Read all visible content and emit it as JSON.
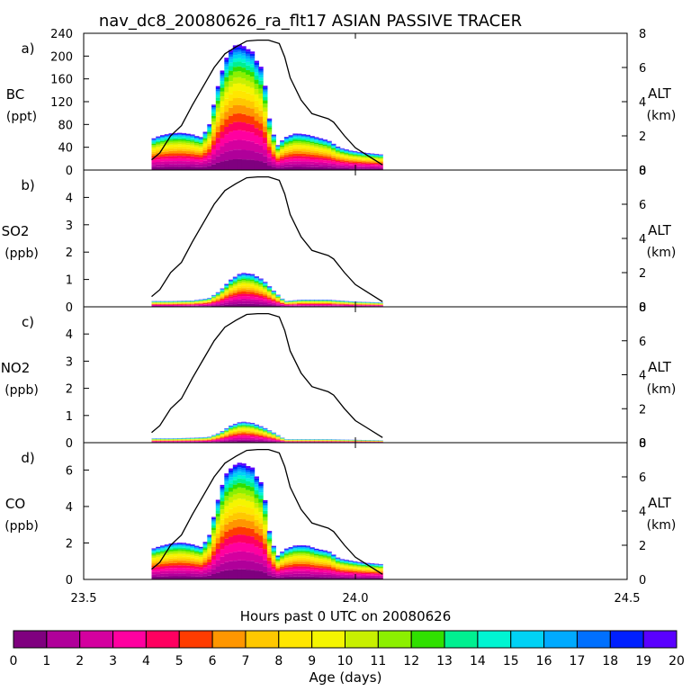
{
  "figure": {
    "title": "nav_dc8_20080626_ra_flt17 ASIAN PASSIVE TRACER",
    "xlabel": "Hours past 0 UTC on 20080626",
    "right_axis_label": "ALT",
    "right_axis_unit": "(km)"
  },
  "colorbar": {
    "label": "Age (days)",
    "ticks": [
      "0",
      "1",
      "2",
      "3",
      "4",
      "5",
      "6",
      "7",
      "8",
      "9",
      "10",
      "11",
      "12",
      "13",
      "14",
      "15",
      "16",
      "17",
      "18",
      "19",
      "20"
    ],
    "colors": [
      "#7f007f",
      "#b0009a",
      "#d4009f",
      "#ff00a0",
      "#ff0060",
      "#ff3c00",
      "#ff9600",
      "#ffc800",
      "#ffe600",
      "#f5f500",
      "#c8f000",
      "#8cf000",
      "#30e000",
      "#00f090",
      "#00f5d2",
      "#00d2f5",
      "#00aaff",
      "#0070ff",
      "#0020ff",
      "#5a00ff"
    ]
  },
  "chart_data": [
    {
      "panel_label": "a)",
      "type": "area",
      "species": "BC",
      "unit": "(ppt)",
      "xlim": [
        23.5,
        24.5
      ],
      "xticks": [
        "23.5",
        "24.0",
        "24.5"
      ],
      "ylim": [
        0,
        240
      ],
      "yticks": [
        "0",
        "40",
        "80",
        "120",
        "160",
        "200",
        "240"
      ],
      "y2lim": [
        0,
        8
      ],
      "y2ticks": [
        "0",
        "2",
        "4",
        "6",
        "8"
      ],
      "total_profile": {
        "x": [
          23.625,
          23.64,
          23.66,
          23.68,
          23.7,
          23.715,
          23.73,
          23.745,
          23.76,
          23.775,
          23.79,
          23.8,
          23.81,
          23.82,
          23.83,
          23.84,
          23.855,
          23.87,
          23.89,
          23.91,
          23.93,
          23.95,
          23.97,
          23.99,
          24.01,
          24.03,
          24.05
        ],
        "y": [
          52,
          58,
          62,
          63,
          60,
          55,
          72,
          135,
          185,
          210,
          212,
          205,
          200,
          180,
          170,
          92,
          40,
          55,
          62,
          60,
          55,
          50,
          38,
          33,
          30,
          28,
          26
        ]
      },
      "altitude_km": {
        "x": [
          23.625,
          23.64,
          23.66,
          23.68,
          23.7,
          23.72,
          23.74,
          23.76,
          23.78,
          23.8,
          23.82,
          23.84,
          23.86,
          23.87,
          23.88,
          23.9,
          23.92,
          23.94,
          23.95,
          23.96,
          23.98,
          24.0,
          24.02,
          24.05
        ],
        "y": [
          0.6,
          1.0,
          2.0,
          2.6,
          3.8,
          4.9,
          6.0,
          6.8,
          7.2,
          7.55,
          7.6,
          7.6,
          7.4,
          6.6,
          5.4,
          4.1,
          3.3,
          3.1,
          3.0,
          2.8,
          2.0,
          1.3,
          0.9,
          0.3
        ]
      }
    },
    {
      "panel_label": "b)",
      "type": "area",
      "species": "SO2",
      "unit": "(ppb)",
      "xlim": [
        23.5,
        24.5
      ],
      "xticks": [
        "23.5",
        "24.0",
        "24.5"
      ],
      "ylim": [
        0,
        5
      ],
      "yticks": [
        "0",
        "1",
        "2",
        "3",
        "4"
      ],
      "y2lim": [
        0,
        8
      ],
      "y2ticks": [
        "0",
        "2",
        "4",
        "6",
        "8"
      ],
      "total_profile": {
        "x": [
          23.625,
          23.66,
          23.7,
          23.73,
          23.75,
          23.77,
          23.79,
          23.81,
          23.83,
          23.85,
          23.87,
          23.9,
          23.95,
          24.0,
          24.05
        ],
        "y": [
          0.2,
          0.2,
          0.22,
          0.3,
          0.55,
          0.95,
          1.2,
          1.15,
          0.95,
          0.55,
          0.2,
          0.25,
          0.25,
          0.18,
          0.15
        ]
      },
      "altitude_km": {
        "x": [
          23.625,
          23.64,
          23.66,
          23.68,
          23.7,
          23.72,
          23.74,
          23.76,
          23.78,
          23.8,
          23.82,
          23.84,
          23.86,
          23.87,
          23.88,
          23.9,
          23.92,
          23.94,
          23.95,
          23.96,
          23.98,
          24.0,
          24.02,
          24.05
        ],
        "y": [
          0.6,
          1.0,
          2.0,
          2.6,
          3.8,
          4.9,
          6.0,
          6.8,
          7.2,
          7.55,
          7.6,
          7.6,
          7.4,
          6.6,
          5.4,
          4.1,
          3.3,
          3.1,
          3.0,
          2.8,
          2.0,
          1.3,
          0.9,
          0.3
        ]
      }
    },
    {
      "panel_label": "c)",
      "type": "area",
      "species": "NO2",
      "unit": "(ppb)",
      "xlim": [
        23.5,
        24.5
      ],
      "xticks": [
        "23.5",
        "24.0",
        "24.5"
      ],
      "ylim": [
        0,
        5
      ],
      "yticks": [
        "0",
        "1",
        "2",
        "3",
        "4"
      ],
      "y2lim": [
        0,
        8
      ],
      "y2ticks": [
        "0",
        "2",
        "4",
        "6",
        "8"
      ],
      "total_profile": {
        "x": [
          23.625,
          23.66,
          23.7,
          23.73,
          23.75,
          23.77,
          23.79,
          23.81,
          23.83,
          23.85,
          23.87,
          23.9,
          23.95,
          24.0,
          24.05
        ],
        "y": [
          0.15,
          0.15,
          0.17,
          0.2,
          0.35,
          0.6,
          0.75,
          0.7,
          0.55,
          0.35,
          0.12,
          0.12,
          0.12,
          0.1,
          0.08
        ]
      },
      "altitude_km": {
        "x": [
          23.625,
          23.64,
          23.66,
          23.68,
          23.7,
          23.72,
          23.74,
          23.76,
          23.78,
          23.8,
          23.82,
          23.84,
          23.86,
          23.87,
          23.88,
          23.9,
          23.92,
          23.94,
          23.95,
          23.96,
          23.98,
          24.0,
          24.02,
          24.05
        ],
        "y": [
          0.6,
          1.0,
          2.0,
          2.6,
          3.8,
          4.9,
          6.0,
          6.8,
          7.2,
          7.55,
          7.6,
          7.6,
          7.4,
          6.6,
          5.4,
          4.1,
          3.3,
          3.1,
          3.0,
          2.8,
          2.0,
          1.3,
          0.9,
          0.3
        ]
      }
    },
    {
      "panel_label": "d)",
      "type": "area",
      "species": "CO",
      "unit": "(ppb)",
      "xlim": [
        23.5,
        24.5
      ],
      "xticks": [
        "23.5",
        "24.0",
        "24.5"
      ],
      "ylim": [
        0,
        7.5
      ],
      "yticks": [
        "0",
        "2",
        "4",
        "6"
      ],
      "y2lim": [
        0,
        8
      ],
      "y2ticks": [
        "0",
        "2",
        "4",
        "6",
        "8"
      ],
      "total_profile": {
        "x": [
          23.625,
          23.64,
          23.66,
          23.68,
          23.7,
          23.715,
          23.73,
          23.745,
          23.76,
          23.775,
          23.79,
          23.8,
          23.81,
          23.82,
          23.83,
          23.84,
          23.855,
          23.87,
          23.89,
          23.91,
          23.93,
          23.95,
          23.97,
          23.99,
          24.01,
          24.03,
          24.05
        ],
        "y": [
          1.6,
          1.75,
          1.9,
          1.95,
          1.85,
          1.7,
          2.2,
          4.0,
          5.5,
          6.0,
          6.2,
          6.0,
          5.9,
          5.3,
          5.0,
          2.7,
          1.2,
          1.6,
          1.8,
          1.8,
          1.6,
          1.5,
          1.1,
          1.0,
          0.9,
          0.85,
          0.8
        ]
      },
      "altitude_km": {
        "x": [
          23.625,
          23.64,
          23.66,
          23.68,
          23.7,
          23.72,
          23.74,
          23.76,
          23.78,
          23.8,
          23.82,
          23.84,
          23.86,
          23.87,
          23.88,
          23.9,
          23.92,
          23.94,
          23.95,
          23.96,
          23.98,
          24.0,
          24.02,
          24.05
        ],
        "y": [
          0.6,
          1.0,
          2.0,
          2.6,
          3.8,
          4.9,
          6.0,
          6.8,
          7.2,
          7.55,
          7.6,
          7.6,
          7.4,
          6.6,
          5.4,
          4.1,
          3.3,
          3.1,
          3.0,
          2.8,
          2.0,
          1.3,
          0.9,
          0.3
        ]
      }
    }
  ]
}
